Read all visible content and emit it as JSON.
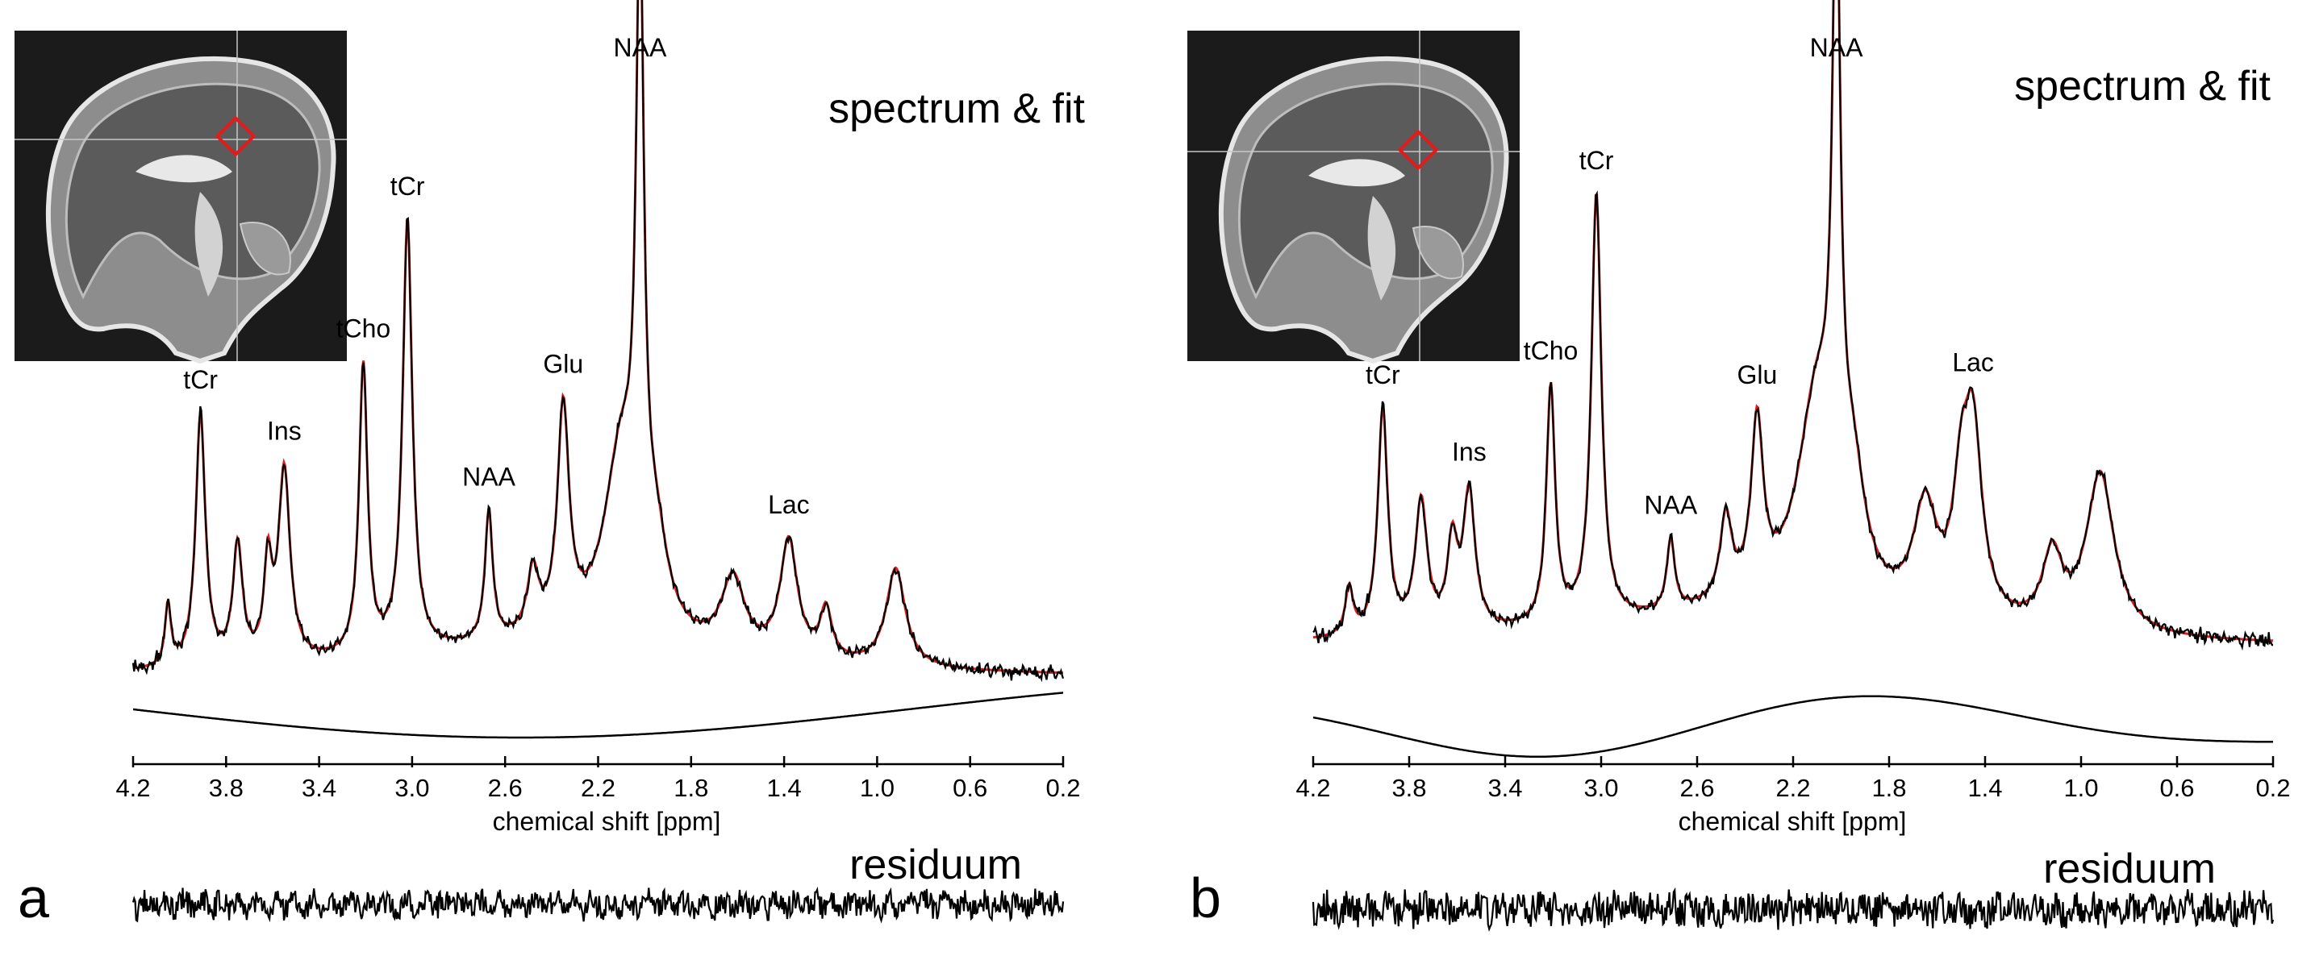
{
  "chart_data": [
    {
      "type": "line",
      "panel_label": "a",
      "title": "spectrum & fit",
      "residual_label": "residuum",
      "xlabel": "chemical shift [ppm]",
      "x_reversed": true,
      "xlim": [
        4.2,
        0.2
      ],
      "x_ticks": [
        "4.2",
        "3.8",
        "3.4",
        "3.0",
        "2.6",
        "2.2",
        "1.8",
        "1.4",
        "1.0",
        "0.6",
        "0.2"
      ],
      "grid": false,
      "series": [
        {
          "name": "spectrum",
          "color": "#000000"
        },
        {
          "name": "fit",
          "color": "#e21b1b"
        },
        {
          "name": "baseline",
          "color": "#000000"
        },
        {
          "name": "residuum",
          "color": "#000000"
        }
      ],
      "peaks": [
        {
          "label": "tCr",
          "ppm": 3.91,
          "height": 0.41
        },
        {
          "label": "Ins",
          "ppm": 3.55,
          "height": 0.31
        },
        {
          "label": "tCho",
          "ppm": 3.21,
          "height": 0.47
        },
        {
          "label": "tCr",
          "ppm": 3.02,
          "height": 0.7
        },
        {
          "label": "NAA",
          "ppm": 2.67,
          "height": 0.21
        },
        {
          "label": "Glu",
          "ppm": 2.35,
          "height": 0.36
        },
        {
          "label": "NAA",
          "ppm": 2.02,
          "height": 1.0
        },
        {
          "label": "Lac",
          "ppm": 1.38,
          "height": 0.19
        }
      ]
    },
    {
      "type": "line",
      "panel_label": "b",
      "title": "spectrum & fit",
      "residual_label": "residuum",
      "xlabel": "chemical shift [ppm]",
      "x_reversed": true,
      "xlim": [
        4.2,
        0.2
      ],
      "x_ticks": [
        "4.2",
        "3.8",
        "3.4",
        "3.0",
        "2.6",
        "2.2",
        "1.8",
        "1.4",
        "1.0",
        "0.6",
        "0.2"
      ],
      "grid": false,
      "series": [
        {
          "name": "spectrum",
          "color": "#000000"
        },
        {
          "name": "fit",
          "color": "#e21b1b"
        },
        {
          "name": "baseline",
          "color": "#000000"
        },
        {
          "name": "residuum",
          "color": "#000000"
        }
      ],
      "peaks": [
        {
          "label": "tCr",
          "ppm": 3.91,
          "height": 0.38
        },
        {
          "label": "Ins",
          "ppm": 3.55,
          "height": 0.23
        },
        {
          "label": "tCho",
          "ppm": 3.21,
          "height": 0.4
        },
        {
          "label": "tCr",
          "ppm": 3.02,
          "height": 0.72
        },
        {
          "label": "NAA",
          "ppm": 2.71,
          "height": 0.12
        },
        {
          "label": "Glu",
          "ppm": 2.35,
          "height": 0.29
        },
        {
          "label": "NAA",
          "ppm": 2.02,
          "height": 1.0
        },
        {
          "label": "Lac",
          "ppm": 1.45,
          "height": 0.3
        }
      ]
    }
  ]
}
